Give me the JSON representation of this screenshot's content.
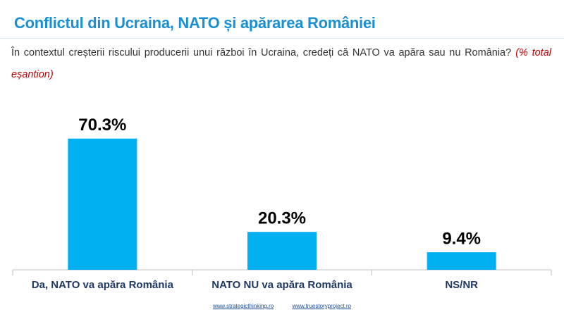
{
  "chart_data": {
    "type": "bar",
    "title": "Conflictul din Ucraina, NATO și apărarea României",
    "subtitle": "În contextul creșterii riscului producerii unui război în Ucraina, credeți că NATO  va apăra sau nu România?",
    "note": "(% total eșantion)",
    "categories": [
      "Da, NATO va apăra România",
      "NATO NU va apăra România",
      "NS/NR"
    ],
    "values": [
      70.3,
      20.3,
      9.4
    ],
    "value_labels": [
      "70.3%",
      "20.3%",
      "9.4%"
    ],
    "color": "#00b0f0"
  },
  "footer": {
    "links": [
      "www.strategicthinking.ro",
      "www.truestoryproject.ro"
    ]
  }
}
